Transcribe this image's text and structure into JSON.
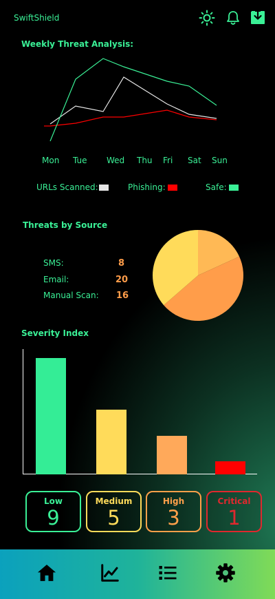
{
  "app": {
    "title": "SwiftShield"
  },
  "header": {
    "icons": [
      "sun-icon",
      "bell-icon",
      "download-icon"
    ]
  },
  "weekly": {
    "title": "Weekly Threat Analysis:",
    "days": [
      "Mon",
      "Tue",
      "Wed",
      "Thu",
      "Fri",
      "Sat",
      "Sun"
    ],
    "legend": [
      {
        "label": "URLs Scanned:",
        "color": "#e6e6e6"
      },
      {
        "label": "Phishing:",
        "color": "#ff0000"
      },
      {
        "label": "Safe:",
        "color": "#3af096"
      }
    ]
  },
  "sources": {
    "title": "Threats by Source",
    "items": [
      {
        "label": "SMS:",
        "value": "8",
        "color": "#ffb955"
      },
      {
        "label": "Email:",
        "value": "20",
        "color": "#ff9d4a"
      },
      {
        "label": "Manual Scan:",
        "value": "16",
        "color": "#ffdb5a"
      }
    ]
  },
  "severity": {
    "title": "Severity Index",
    "bars": [
      {
        "name": "Low",
        "value": 9,
        "color": "#34ed96"
      },
      {
        "name": "Medium",
        "value": 5,
        "color": "#ffdb5a"
      },
      {
        "name": "High",
        "value": 3,
        "color": "#ffa95a"
      },
      {
        "name": "Critical",
        "value": 1,
        "color": "#ff0000"
      }
    ],
    "cards": [
      {
        "label": "Low",
        "value": "9",
        "color": "#3af096"
      },
      {
        "label": "Medium",
        "value": "5",
        "color": "#ffdb5a"
      },
      {
        "label": "High",
        "value": "3",
        "color": "#ffa04a"
      },
      {
        "label": "Critical",
        "value": "1",
        "color": "#e0282e"
      }
    ]
  },
  "nav": {
    "items": [
      "home-icon",
      "chart-icon",
      "list-icon",
      "gear-icon"
    ]
  },
  "chart_data": [
    {
      "type": "line",
      "x": [
        "Mon",
        "Tue",
        "Wed",
        "Thu",
        "Fri",
        "Sat",
        "Sun"
      ],
      "series": [
        {
          "name": "URLs Scanned:",
          "values": [
            2,
            4.6,
            3.8,
            8.8,
            4.9,
            3.4,
            2.8
          ]
        },
        {
          "name": "Phishing:",
          "values": [
            1.7,
            2.1,
            3.0,
            3.0,
            4.0,
            3.0,
            2.6
          ]
        },
        {
          "name": "Safe:",
          "values": [
            -0.5,
            8.5,
            11.5,
            10.3,
            8.2,
            7.5,
            4.7
          ]
        }
      ]
    },
    {
      "type": "pie",
      "categories": [
        "SMS:",
        "Email:",
        "Manual Scan:"
      ],
      "values": [
        8,
        20,
        16
      ]
    },
    {
      "type": "bar",
      "categories": [
        "Low",
        "Medium",
        "High",
        "Critical"
      ],
      "values": [
        9,
        5,
        3,
        1
      ]
    }
  ]
}
